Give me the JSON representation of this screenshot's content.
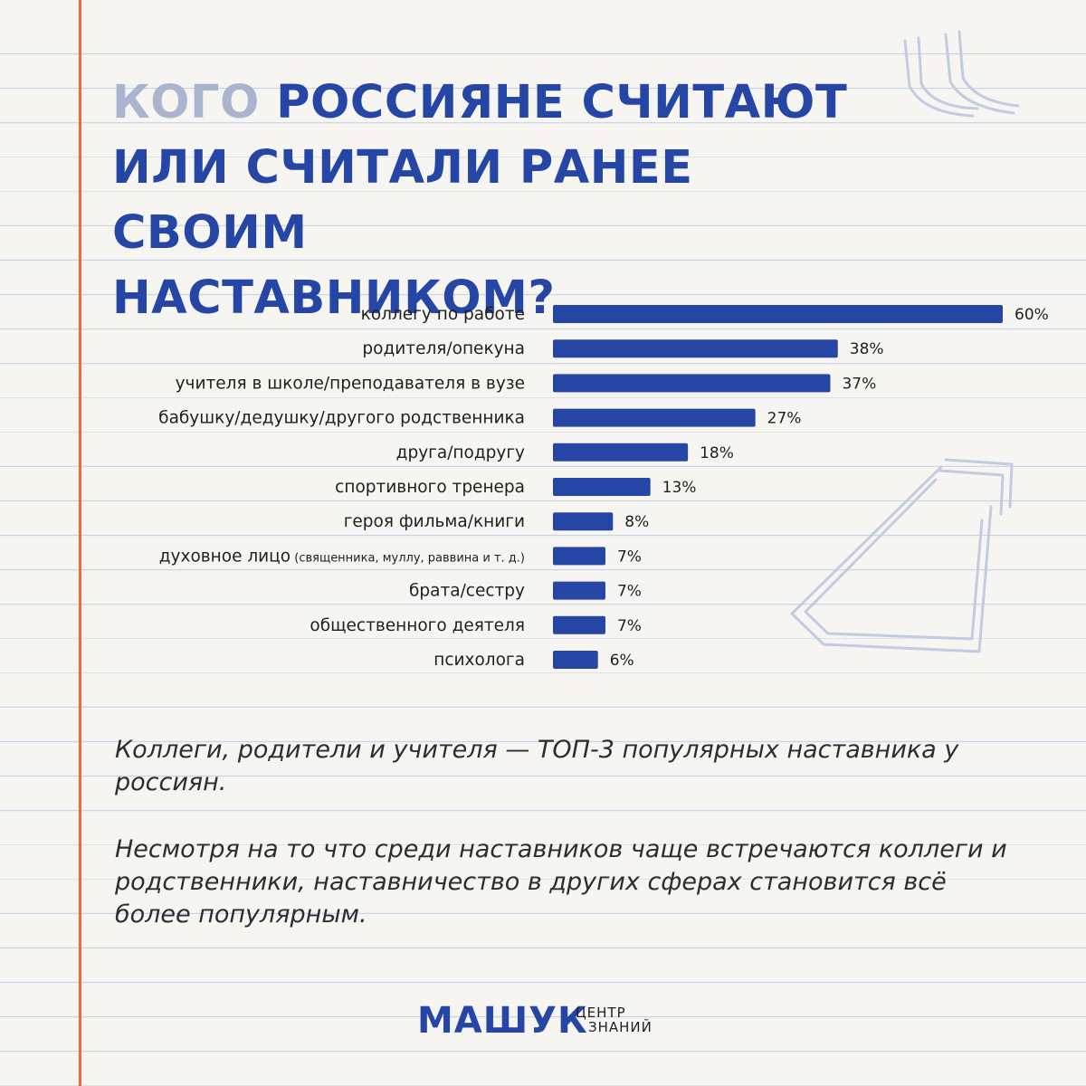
{
  "title": {
    "muted": "КОГО",
    "line1": "РОССИЯНЕ СЧИТАЮТ",
    "line2": "ИЛИ СЧИТАЛИ РАНЕЕ СВОИМ",
    "line3": "НАСТАВНИКОМ?"
  },
  "colors": {
    "accent": "#2646a6",
    "muted": "#aab4cf",
    "margin_line": "#ee6a39",
    "paper": "#f6f5f1",
    "rules": "#c9d2e6"
  },
  "chart_data": {
    "type": "bar",
    "orientation": "horizontal",
    "categories": [
      "коллегу по работе",
      "родителя/опекуна",
      "учителя в школе/преподавателя в вузе",
      "бабушку/дедушку/другого родственника",
      "друга/подругу",
      "спортивного тренера",
      "героя фильма/книги",
      "духовное лицо",
      "брата/сестру",
      "общественного деятеля",
      "психолога"
    ],
    "category_notes": [
      "",
      "",
      "",
      "",
      "",
      "",
      "",
      "(священника, муллу, раввина и т. д.)",
      "",
      "",
      ""
    ],
    "values": [
      60,
      38,
      37,
      27,
      18,
      13,
      8,
      7,
      7,
      7,
      6
    ],
    "value_labels": [
      "60%",
      "38%",
      "37%",
      "27%",
      "18%",
      "13%",
      "8%",
      "7%",
      "7%",
      "7%",
      "6%"
    ],
    "xlim": [
      0,
      60
    ],
    "grid": false,
    "bar_color": "#2646a6"
  },
  "text": {
    "p1": "Коллеги, родители и учителя — ТОП-3 популярных наставника у россиян.",
    "p2": "Несмотря на то что среди наставников чаще встречаются коллеги и родственники, наставничество в других сферах становится всё более популярным."
  },
  "logo": {
    "main": "МАШУК",
    "sub1": "ЦЕНТР",
    "sub2": "ЗНАНИЙ"
  }
}
